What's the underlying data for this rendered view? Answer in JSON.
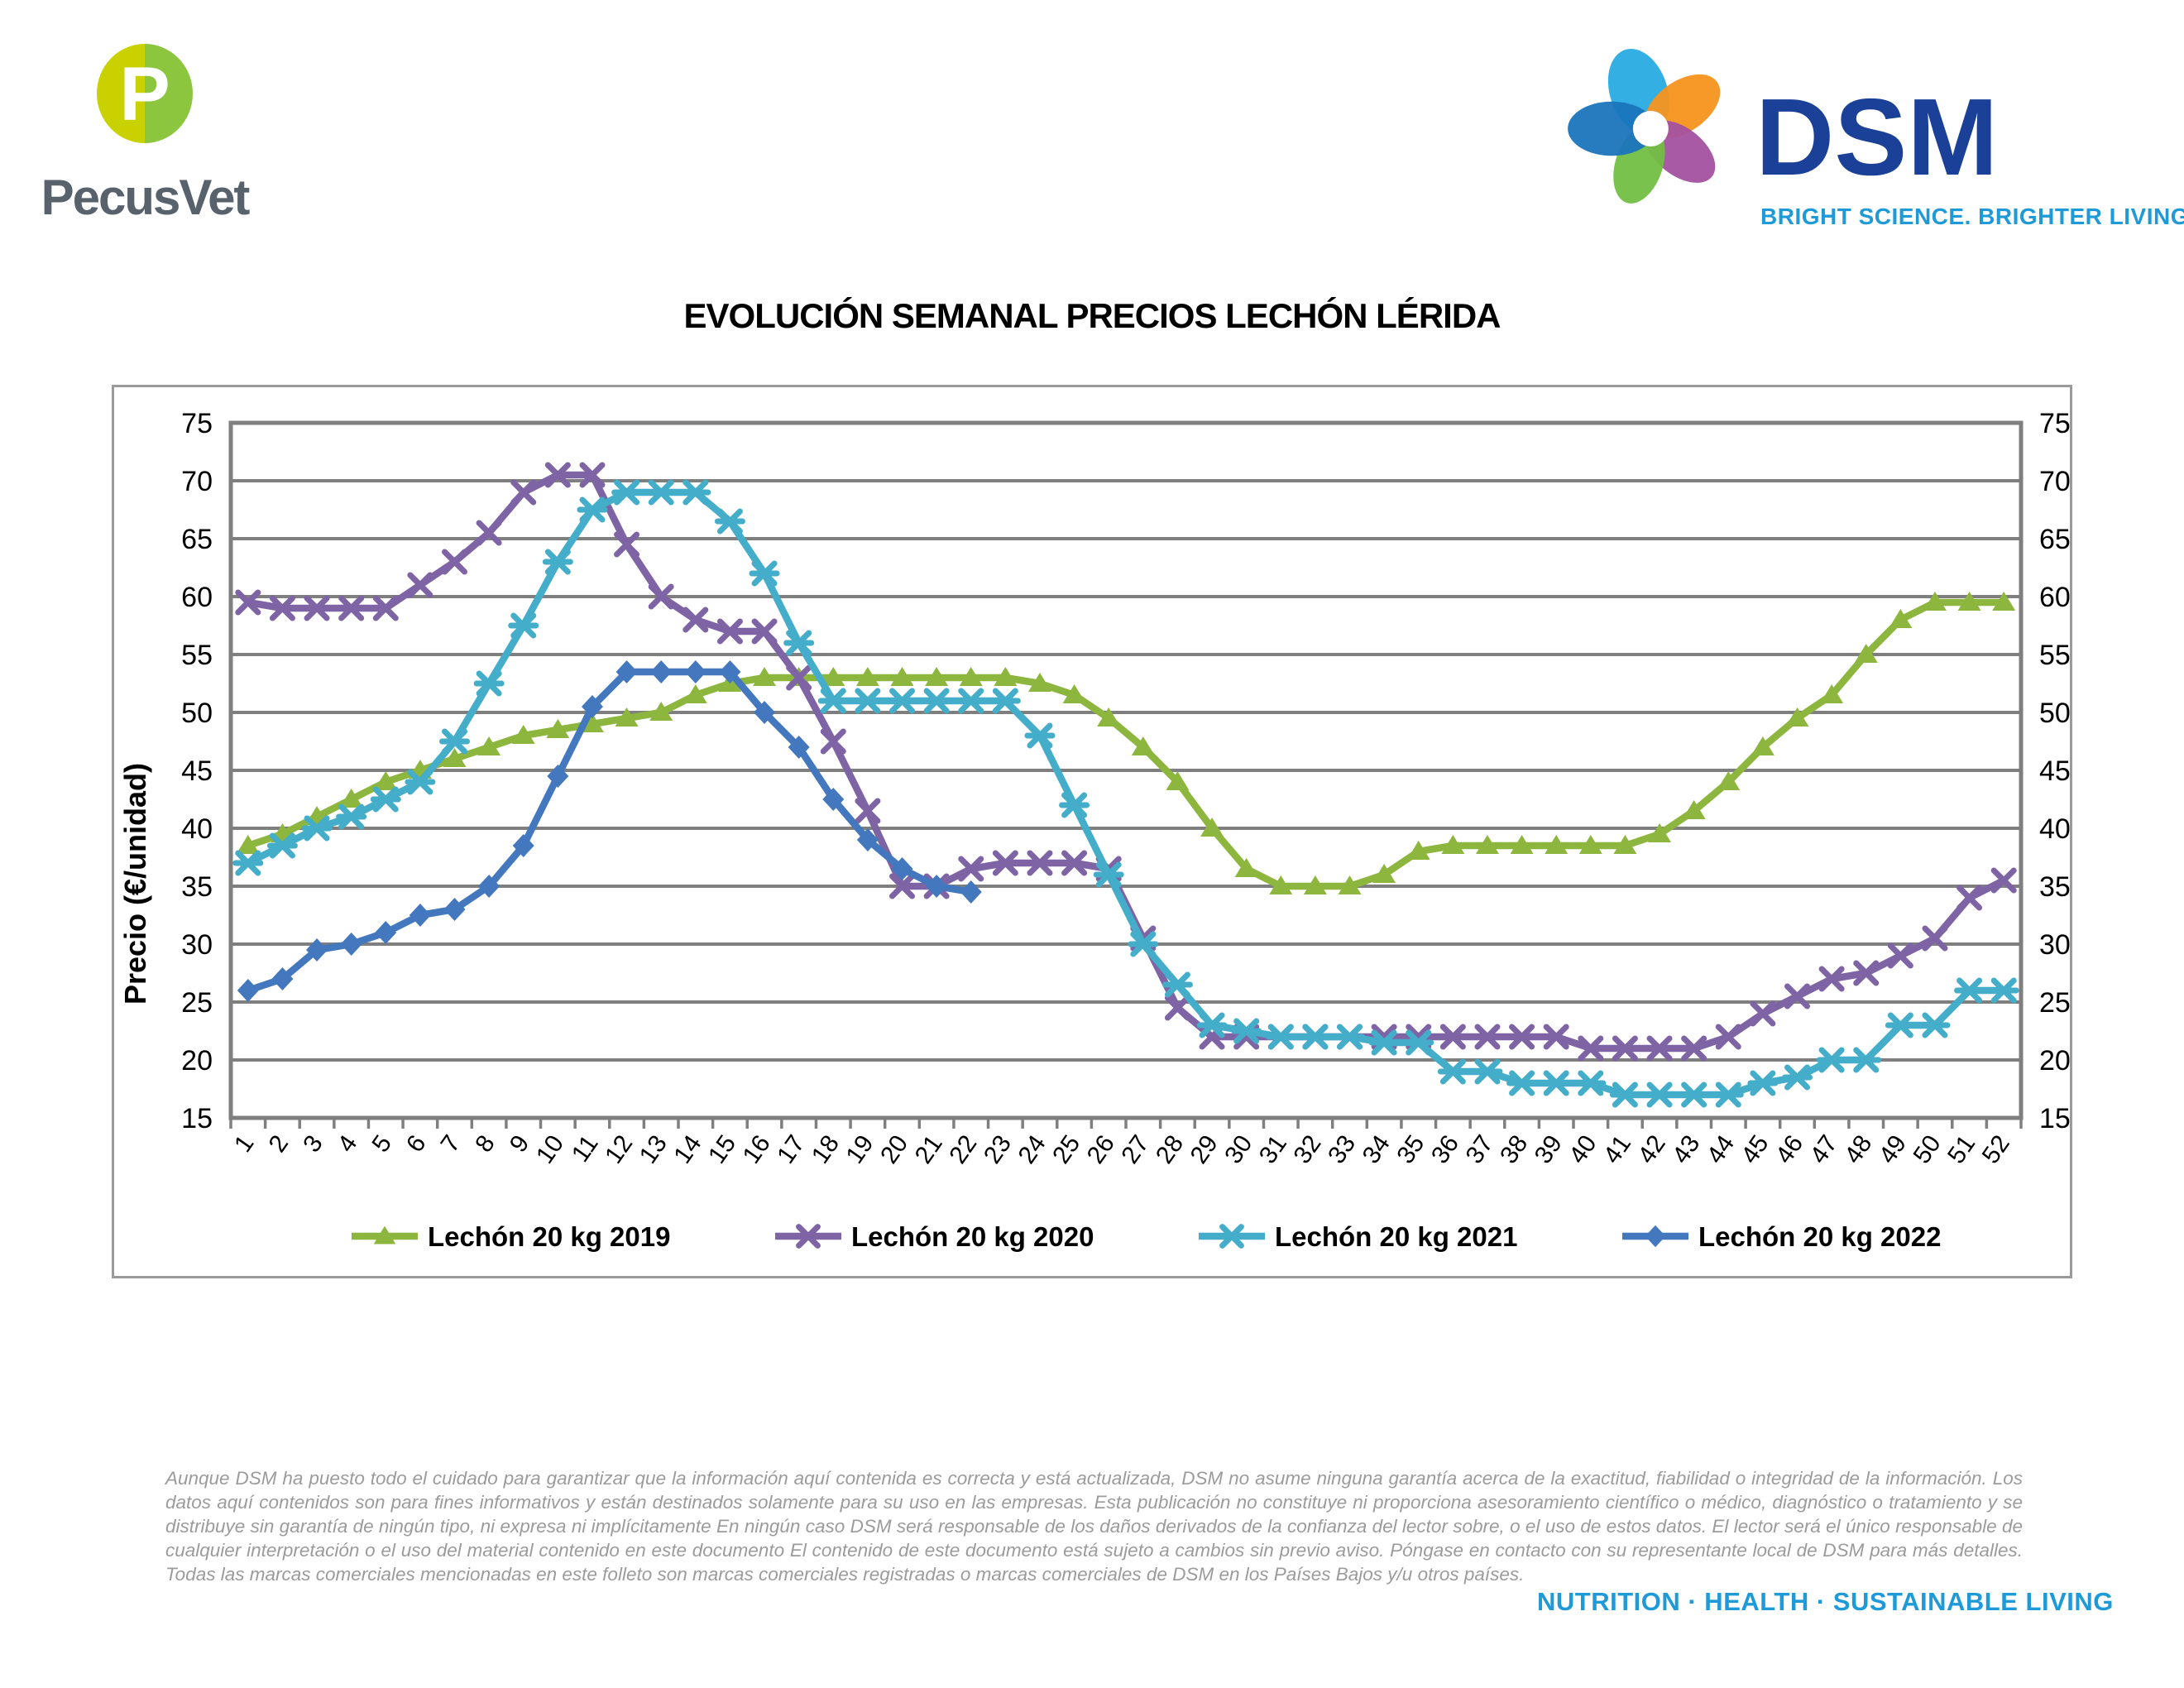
{
  "header": {
    "pecusvet": {
      "name": "PecusVet",
      "letter": "P"
    },
    "dsm": {
      "name": "DSM",
      "tagline": "BRIGHT SCIENCE. BRIGHTER LIVING."
    }
  },
  "title": "EVOLUCIÓN SEMANAL PRECIOS LECHÓN LÉRIDA",
  "chart_data": {
    "type": "line",
    "title": "EVOLUCIÓN SEMANAL PRECIOS LECHÓN LÉRIDA",
    "xlabel": "",
    "ylabel": "Precio (€/unidad)",
    "ylim": [
      15,
      75
    ],
    "ytick_step": 5,
    "grid": true,
    "legend_position": "bottom",
    "grid_color": "#7f7f7f",
    "x": [
      1,
      2,
      3,
      4,
      5,
      6,
      7,
      8,
      9,
      10,
      11,
      12,
      13,
      14,
      15,
      16,
      17,
      18,
      19,
      20,
      21,
      22,
      23,
      24,
      25,
      26,
      27,
      28,
      29,
      30,
      31,
      32,
      33,
      34,
      35,
      36,
      37,
      38,
      39,
      40,
      41,
      42,
      43,
      44,
      45,
      46,
      47,
      48,
      49,
      50,
      51,
      52
    ],
    "series": [
      {
        "name": "Lechón 20 kg 2019",
        "color": "#8db63f",
        "marker": "triangle",
        "values": [
          38.5,
          39.5,
          41,
          42.5,
          44,
          45,
          46,
          47,
          48,
          48.5,
          49,
          49.5,
          50,
          51.5,
          52.5,
          53,
          53,
          53,
          53,
          53,
          53,
          53,
          53,
          52.5,
          51.5,
          49.5,
          47,
          44,
          40,
          36.5,
          35,
          35,
          35,
          36,
          38,
          38.5,
          38.5,
          38.5,
          38.5,
          38.5,
          38.5,
          39.5,
          41.5,
          44,
          47,
          49.5,
          51.5,
          55,
          58,
          59.5,
          59.5,
          59.5
        ]
      },
      {
        "name": "Lechón 20 kg 2020",
        "color": "#7e64a5",
        "marker": "x",
        "values": [
          59.5,
          59,
          59,
          59,
          59,
          61,
          63,
          65.5,
          69,
          70.5,
          70.5,
          64.5,
          60,
          58,
          57,
          57,
          53,
          47.5,
          41.5,
          35,
          35,
          36.5,
          37,
          37,
          37,
          36.5,
          30.5,
          24.5,
          22,
          22,
          22,
          22,
          22,
          22,
          22,
          22,
          22,
          22,
          22,
          21,
          21,
          21,
          21,
          22,
          24,
          25.5,
          27,
          27.5,
          29,
          30.5,
          34,
          35.5
        ]
      },
      {
        "name": "Lechón 20 kg 2021",
        "color": "#44adc9",
        "marker": "asterisk",
        "values": [
          37,
          38.5,
          40,
          41,
          42.5,
          44,
          47.5,
          52.5,
          57.5,
          63,
          67.5,
          69,
          69,
          69,
          66.5,
          62,
          56,
          51,
          51,
          51,
          51,
          51,
          51,
          48,
          42,
          36,
          30,
          26.5,
          23,
          22.5,
          22,
          22,
          22,
          21.5,
          21.5,
          19,
          19,
          18,
          18,
          18,
          17,
          17,
          17,
          17,
          18,
          18.5,
          20,
          20,
          23,
          23,
          26,
          26
        ]
      },
      {
        "name": "Lechón 20 kg 2022",
        "color": "#4377be",
        "marker": "diamond",
        "values": [
          26,
          27,
          29.5,
          30,
          31,
          32.5,
          33,
          35,
          38.5,
          44.5,
          50.5,
          53.5,
          53.5,
          53.5,
          53.5,
          50,
          47,
          42.5,
          39,
          36.5,
          35,
          34.5,
          null,
          null,
          null,
          null,
          null,
          null,
          null,
          null,
          null,
          null,
          null,
          null,
          null,
          null,
          null,
          null,
          null,
          null,
          null,
          null,
          null,
          null,
          null,
          null,
          null,
          null,
          null,
          null,
          null,
          null
        ]
      }
    ]
  },
  "footer": {
    "disclaimer": "Aunque DSM ha puesto todo el cuidado para garantizar que la información aquí contenida es correcta y está actualizada, DSM no asume ninguna garantía acerca de la exactitud, fiabilidad o integridad de la información. Los datos aquí contenidos son para fines informativos y están destinados solamente para su uso en las empresas. Esta publicación no constituye ni proporciona asesoramiento científico o médico, diagnóstico o tratamiento y se distribuye sin garantía de ningún tipo, ni expresa ni implícitamente En ningún caso DSM será responsable de los daños derivados de la confianza del lector sobre, o el uso de estos datos. El lector será el único responsable de cualquier interpretación o el uso del material contenido en este documento El contenido de este documento está sujeto a cambios sin previo aviso. Póngase en contacto con su representante local de DSM para más detalles. Todas las marcas comerciales mencionadas en este folleto son marcas comerciales registradas o marcas comerciales de DSM en los Países Bajos y/u otros países.",
    "motto": "NUTRITION  ·  HEALTH  ·  SUSTAINABLE LIVING"
  }
}
